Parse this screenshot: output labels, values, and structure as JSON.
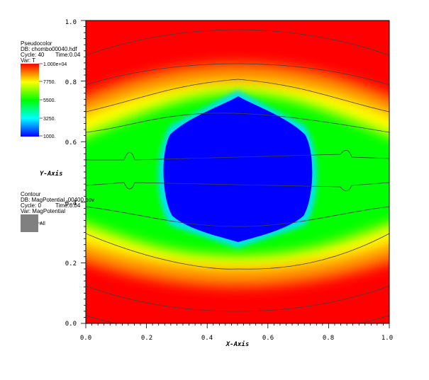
{
  "pseudocolor_legend": {
    "title": "Pseudocolor",
    "db": "DB: chombo00040.hdf",
    "cycle_label": "Cycle: 40",
    "time_label": "Time:0.04",
    "var": "Var: T",
    "colorbar_labels": [
      "1.000e+04",
      "7750.",
      "5500.",
      "3250.",
      "1000."
    ],
    "colorbar_colors": [
      "#ff0000",
      "#ffff00",
      "#00ff00",
      "#00ffff",
      "#0000ff"
    ]
  },
  "contour_legend": {
    "title": "Contour",
    "db": "DB: MagPotential_00400.bov",
    "cycle_label": "Cycle: 0",
    "time_label": "Time:0.04",
    "var": "Var: MagPotential",
    "swatch_color": "#808080",
    "swatch_label": "All"
  },
  "chart_data": {
    "type": "heatmap",
    "title": "",
    "xlabel": "X-Axis",
    "ylabel": "Y-Axis",
    "xlim": [
      0.0,
      1.0
    ],
    "ylim": [
      0.0,
      1.0
    ],
    "x_ticks": [
      "0.0",
      "0.2",
      "0.4",
      "0.6",
      "0.8",
      "1.0"
    ],
    "y_ticks": [
      "0.0",
      "0.2",
      "0.4",
      "0.6",
      "0.8",
      "1.0"
    ],
    "variable": "T",
    "value_range": [
      1000,
      10000
    ],
    "blob_center": [
      0.5,
      0.55
    ],
    "contour_levels_y": [
      0.08,
      0.18,
      0.3,
      0.43,
      0.55,
      0.67,
      0.78,
      0.9,
      0.98
    ],
    "contour_color": "#404040"
  }
}
